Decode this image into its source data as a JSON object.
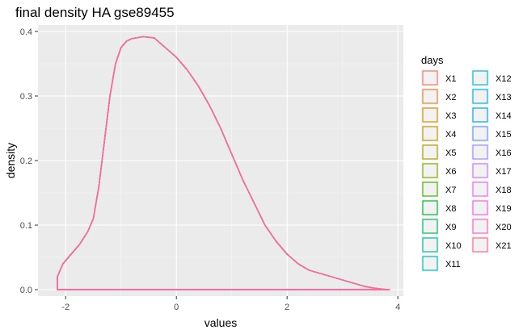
{
  "chart_data": {
    "type": "area",
    "title": "final density HA gse89455",
    "xlabel": "values",
    "ylabel": "density",
    "xlim": [
      -2.5,
      4.1
    ],
    "ylim": [
      -0.01,
      0.41
    ],
    "x_ticks": [
      -2,
      0,
      2,
      4
    ],
    "x_tick_labels": [
      "-2",
      "0",
      "2",
      "4"
    ],
    "y_ticks": [
      0.0,
      0.1,
      0.2,
      0.3,
      0.4
    ],
    "y_tick_labels": [
      "0.0",
      "0.1",
      "0.2",
      "0.3",
      "0.4"
    ],
    "grid": true,
    "legend_position": "right",
    "legend_title": "days",
    "series_names": [
      "X1",
      "X2",
      "X3",
      "X4",
      "X5",
      "X6",
      "X7",
      "X8",
      "X9",
      "X10",
      "X11",
      "X12",
      "X13",
      "X14",
      "X15",
      "X16",
      "X17",
      "X18",
      "X19",
      "X20",
      "X21"
    ],
    "series_colors": [
      "#F8766D",
      "#EB8335",
      "#DA8F00",
      "#C49A00",
      "#A9A400",
      "#86AC00",
      "#53B400",
      "#00BA38",
      "#00BE6C",
      "#00C094",
      "#00C0B8",
      "#00BCD6",
      "#00B4EF",
      "#00A9FF",
      "#619CFF",
      "#9F8CFF",
      "#C77CFF",
      "#E36EF6",
      "#F564E3",
      "#FF62BC",
      "#FF6C91"
    ],
    "density_curve": {
      "x": [
        -2.15,
        -2.15,
        -2.05,
        -1.9,
        -1.75,
        -1.6,
        -1.5,
        -1.4,
        -1.3,
        -1.2,
        -1.1,
        -1.0,
        -0.9,
        -0.8,
        -0.6,
        -0.4,
        -0.2,
        0.0,
        0.2,
        0.4,
        0.6,
        0.8,
        1.0,
        1.2,
        1.4,
        1.6,
        1.8,
        2.0,
        2.2,
        2.4,
        2.6,
        2.8,
        3.0,
        3.2,
        3.4,
        3.6,
        3.8,
        3.85
      ],
      "y": [
        0.0,
        0.02,
        0.04,
        0.055,
        0.07,
        0.09,
        0.11,
        0.16,
        0.23,
        0.3,
        0.35,
        0.375,
        0.385,
        0.389,
        0.392,
        0.39,
        0.375,
        0.36,
        0.34,
        0.315,
        0.285,
        0.25,
        0.21,
        0.17,
        0.135,
        0.1,
        0.075,
        0.055,
        0.04,
        0.03,
        0.025,
        0.02,
        0.015,
        0.01,
        0.005,
        0.002,
        0.0,
        0.0
      ]
    }
  }
}
